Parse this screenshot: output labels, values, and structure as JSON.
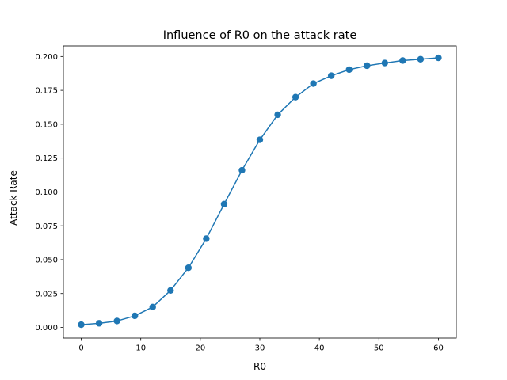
{
  "chart_data": {
    "type": "line",
    "title": "Influence of R0 on the attack rate",
    "xlabel": "R0",
    "ylabel": "Attack Rate",
    "xlim": [
      -3,
      63
    ],
    "ylim": [
      -0.0079,
      0.2078
    ],
    "x_ticks": [
      0,
      10,
      20,
      30,
      40,
      50,
      60
    ],
    "x_tick_labels": [
      "0",
      "10",
      "20",
      "30",
      "40",
      "50",
      "60"
    ],
    "y_ticks": [
      0.0,
      0.025,
      0.05,
      0.075,
      0.1,
      0.125,
      0.15,
      0.175,
      0.2
    ],
    "y_tick_labels": [
      "0.000",
      "0.025",
      "0.050",
      "0.075",
      "0.100",
      "0.125",
      "0.150",
      "0.175",
      "0.200"
    ],
    "grid": false,
    "legend": "none",
    "series": [
      {
        "color": "#1f77b4",
        "marker": "circle",
        "x": [
          0,
          3,
          6,
          9,
          12,
          15,
          18,
          21,
          24,
          27,
          30,
          33,
          36,
          39,
          42,
          45,
          48,
          51,
          54,
          57,
          60
        ],
        "values": [
          0.002,
          0.003,
          0.0047,
          0.0085,
          0.015,
          0.0273,
          0.044,
          0.0655,
          0.091,
          0.116,
          0.1385,
          0.157,
          0.17,
          0.18,
          0.1858,
          0.1903,
          0.1932,
          0.1952,
          0.197,
          0.198,
          0.199
        ]
      }
    ]
  }
}
